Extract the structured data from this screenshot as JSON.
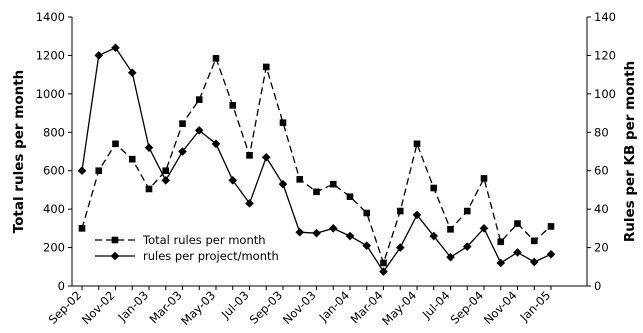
{
  "chart_data": {
    "type": "line",
    "x_tick_labels": [
      "Sep-02",
      "Nov-02",
      "Jan-03",
      "Mar-03",
      "May-03",
      "Jul-03",
      "Sep-03",
      "Nov-03",
      "Jan-04",
      "Mar-04",
      "May-04",
      "Jul-04",
      "Sep-04",
      "Nov-04",
      "Jan-05"
    ],
    "x": [
      "Sep-02",
      "Oct-02",
      "Nov-02",
      "Dec-02",
      "Jan-03",
      "Feb-03",
      "Mar-03",
      "Apr-03",
      "May-03",
      "Jun-03",
      "Jul-03",
      "Aug-03",
      "Sep-03",
      "Oct-03",
      "Nov-03",
      "Dec-03",
      "Jan-04",
      "Feb-04",
      "Mar-04",
      "Apr-04",
      "May-04",
      "Jun-04",
      "Jul-04",
      "Aug-04",
      "Sep-04",
      "Oct-04",
      "Nov-04",
      "Dec-04",
      "Jan-05"
    ],
    "series": [
      {
        "name": "Total rules per month",
        "axis": "left",
        "style": "dashed",
        "marker": "square",
        "values": [
          300,
          600,
          740,
          660,
          505,
          600,
          845,
          970,
          1185,
          940,
          680,
          1140,
          850,
          555,
          490,
          530,
          465,
          380,
          120,
          390,
          740,
          510,
          295,
          390,
          560,
          230,
          325,
          235,
          310
        ]
      },
      {
        "name": "rules per project/month",
        "axis": "right",
        "style": "solid",
        "marker": "diamond",
        "values": [
          60,
          120,
          124,
          111,
          72,
          55,
          70,
          81,
          74,
          55,
          43,
          67,
          53,
          28,
          27.5,
          30,
          26,
          21,
          7.5,
          20,
          37,
          26,
          15,
          20.5,
          30,
          12,
          17.5,
          12.5,
          16.5
        ]
      }
    ],
    "ylabel": "Total rules per month",
    "ylabel_right": "Rules per KB per month",
    "ylim": [
      0,
      1400
    ],
    "ylim_right": [
      0,
      140
    ],
    "y_ticks": [
      0,
      200,
      400,
      600,
      800,
      1000,
      1200,
      1400
    ],
    "y_ticks_right": [
      0,
      20,
      40,
      60,
      80,
      100,
      120,
      140
    ],
    "grid": false,
    "legend_position": "bottom-left",
    "line_color": "#000000"
  }
}
